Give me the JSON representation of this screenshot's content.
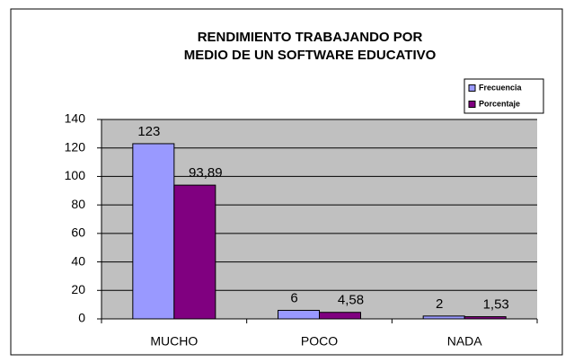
{
  "chart_data": {
    "type": "bar",
    "title": [
      "RENDIMIENTO TRABAJANDO POR",
      "MEDIO DE UN SOFTWARE EDUCATIVO"
    ],
    "categories": [
      "MUCHO",
      "POCO",
      "NADA"
    ],
    "series": [
      {
        "name": "Frecuencia",
        "color": "#9999ff",
        "values": [
          123,
          6,
          2
        ]
      },
      {
        "name": "Porcentaje",
        "color": "#800080",
        "values": [
          93.89,
          4.58,
          1.53
        ],
        "value_labels": [
          "93,89",
          "4,58",
          "1,53"
        ]
      }
    ],
    "ylim": [
      0,
      140
    ],
    "yticks": [
      0,
      20,
      40,
      60,
      80,
      100,
      120,
      140
    ],
    "grid": true,
    "legend": "top-right"
  }
}
